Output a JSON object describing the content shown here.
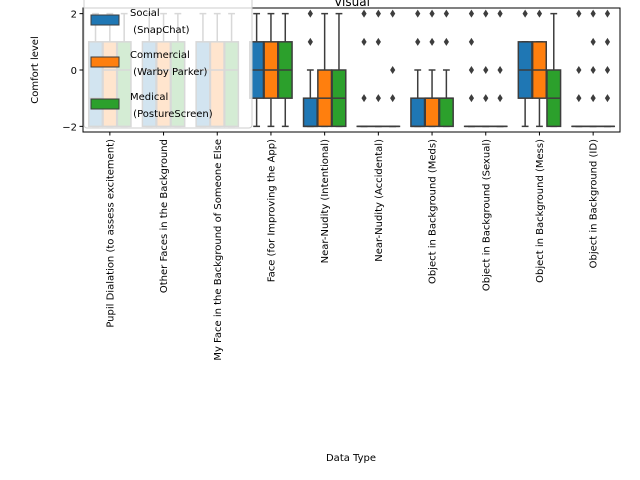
{
  "chart_data": {
    "type": "box",
    "title": "Visual",
    "xlabel": "Data Type",
    "ylabel": "Comfort level",
    "ylim": [
      -2.2,
      2.2
    ],
    "yticks": [
      -2,
      0,
      2
    ],
    "yticklabels": [
      "−2",
      "0",
      "2"
    ],
    "grid": false,
    "legend_position": "upper-left",
    "categories": [
      "Pupil Dialation (to assess excitement)",
      "Other Faces in the Background",
      "My Face in the Background of Someone Else",
      "Face (for Improving the App)",
      "Near-Nudity (Intentional)",
      "Near-Nudity (Accidental)",
      "Object in Background (Meds)",
      "Object in Background (Sexual)",
      "Object in Background (Mess)",
      "Object in Background (ID)"
    ],
    "series": [
      {
        "name": "Social\n (SnapChat)",
        "color": "#1f77b4",
        "boxes": [
          {
            "whislo": -2,
            "q1": -2,
            "med": -1,
            "q3": 1,
            "whishi": 2,
            "fliers": []
          },
          {
            "whislo": -2,
            "q1": -2,
            "med": 0,
            "q3": 1,
            "whishi": 2,
            "fliers": []
          },
          {
            "whislo": -2,
            "q1": -2,
            "med": 0,
            "q3": 1,
            "whishi": 2,
            "fliers": []
          },
          {
            "whislo": -2,
            "q1": -1,
            "med": 0,
            "q3": 1,
            "whishi": 2,
            "fliers": []
          },
          {
            "whislo": -2,
            "q1": -2,
            "med": -2,
            "q3": -1,
            "whishi": 0,
            "fliers": [
              1,
              2
            ]
          },
          {
            "whislo": -2,
            "q1": -2,
            "med": -2,
            "q3": -2,
            "whishi": -2,
            "fliers": [
              -1,
              1,
              2
            ]
          },
          {
            "whislo": -2,
            "q1": -2,
            "med": -2,
            "q3": -1,
            "whishi": 0,
            "fliers": [
              1,
              2
            ]
          },
          {
            "whislo": -2,
            "q1": -2,
            "med": -2,
            "q3": -2,
            "whishi": -2,
            "fliers": [
              -1,
              0,
              1,
              2
            ]
          },
          {
            "whislo": -2,
            "q1": -1,
            "med": 0,
            "q3": 1,
            "whishi": 1,
            "fliers": [
              2
            ]
          },
          {
            "whislo": -2,
            "q1": -2,
            "med": -2,
            "q3": -2,
            "whishi": -2,
            "fliers": [
              -1,
              0,
              2
            ]
          }
        ]
      },
      {
        "name": "Commercial\n (Warby Parker)",
        "color": "#ff7f0e",
        "boxes": [
          {
            "whislo": -2,
            "q1": -2,
            "med": 0,
            "q3": 1,
            "whishi": 2,
            "fliers": []
          },
          {
            "whislo": -2,
            "q1": -2,
            "med": 0,
            "q3": 1,
            "whishi": 2,
            "fliers": []
          },
          {
            "whislo": -2,
            "q1": -2,
            "med": 0,
            "q3": 1,
            "whishi": 2,
            "fliers": []
          },
          {
            "whislo": -2,
            "q1": -1,
            "med": 0,
            "q3": 1,
            "whishi": 2,
            "fliers": []
          },
          {
            "whislo": -2,
            "q1": -2,
            "med": -1,
            "q3": 0,
            "whishi": 2,
            "fliers": []
          },
          {
            "whislo": -2,
            "q1": -2,
            "med": -2,
            "q3": -2,
            "whishi": -2,
            "fliers": [
              -1,
              1,
              2
            ]
          },
          {
            "whislo": -2,
            "q1": -2,
            "med": -1,
            "q3": -1,
            "whishi": 0,
            "fliers": [
              1,
              2
            ]
          },
          {
            "whislo": -2,
            "q1": -2,
            "med": -2,
            "q3": -2,
            "whishi": -2,
            "fliers": [
              -1,
              0,
              2
            ]
          },
          {
            "whislo": -2,
            "q1": -1,
            "med": 0,
            "q3": 1,
            "whishi": 1,
            "fliers": [
              2
            ]
          },
          {
            "whislo": -2,
            "q1": -2,
            "med": -2,
            "q3": -2,
            "whishi": -2,
            "fliers": [
              -1,
              0,
              1,
              2
            ]
          }
        ]
      },
      {
        "name": "Medical\n (PostureScreen)",
        "color": "#2ca02c",
        "boxes": [
          {
            "whislo": -2,
            "q1": -2,
            "med": 0,
            "q3": 1,
            "whishi": 2,
            "fliers": []
          },
          {
            "whislo": -2,
            "q1": -2,
            "med": 0,
            "q3": 1,
            "whishi": 2,
            "fliers": []
          },
          {
            "whislo": -2,
            "q1": -2,
            "med": 0,
            "q3": 1,
            "whishi": 2,
            "fliers": []
          },
          {
            "whislo": -2,
            "q1": -1,
            "med": 0,
            "q3": 1,
            "whishi": 2,
            "fliers": []
          },
          {
            "whislo": -2,
            "q1": -2,
            "med": -1,
            "q3": 0,
            "whishi": 2,
            "fliers": []
          },
          {
            "whislo": -2,
            "q1": -2,
            "med": -2,
            "q3": -2,
            "whishi": -2,
            "fliers": [
              -1,
              0,
              2
            ]
          },
          {
            "whislo": -2,
            "q1": -2,
            "med": -1,
            "q3": -1,
            "whishi": 0,
            "fliers": [
              1,
              2
            ]
          },
          {
            "whislo": -2,
            "q1": -2,
            "med": -2,
            "q3": -2,
            "whishi": -2,
            "fliers": [
              -1,
              0,
              2
            ]
          },
          {
            "whislo": -2,
            "q1": -2,
            "med": -1,
            "q3": 0,
            "whishi": 2,
            "fliers": []
          },
          {
            "whislo": -2,
            "q1": -2,
            "med": -2,
            "q3": -2,
            "whishi": -2,
            "fliers": [
              -1,
              0,
              1,
              2
            ]
          }
        ]
      }
    ]
  }
}
